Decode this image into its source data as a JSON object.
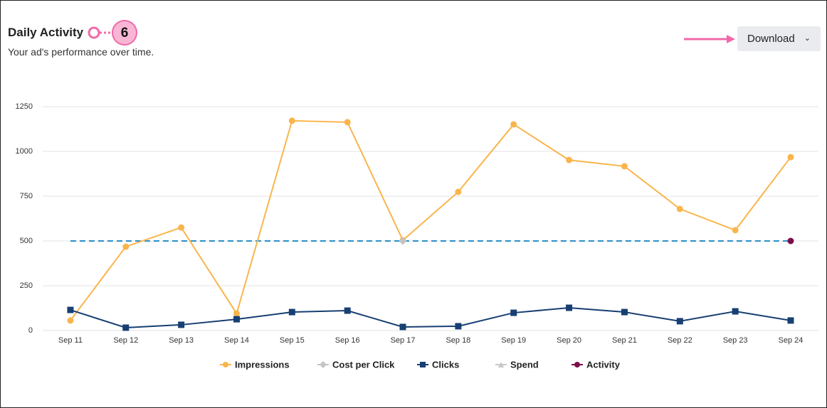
{
  "header": {
    "title": "Daily Activity",
    "subtitle": "Your ad's performance over time."
  },
  "callout": {
    "label": "6"
  },
  "button": {
    "label": "Download"
  },
  "chart_data": {
    "type": "line",
    "categories": [
      "Sep 11",
      "Sep 12",
      "Sep 13",
      "Sep 14",
      "Sep 15",
      "Sep 16",
      "Sep 17",
      "Sep 18",
      "Sep 19",
      "Sep 20",
      "Sep 21",
      "Sep 22",
      "Sep 23",
      "Sep 24"
    ],
    "series": [
      {
        "name": "Impressions",
        "color": "#f9b54c",
        "marker": "circle",
        "values": [
          56,
          468,
          575,
          95,
          1171,
          1163,
          504,
          774,
          1151,
          952,
          917,
          679,
          560,
          968
        ]
      },
      {
        "name": "Cost per Click",
        "color": "#c4c4c4",
        "marker": "diamond",
        "values": [
          null,
          null,
          null,
          null,
          null,
          null,
          500,
          null,
          null,
          null,
          null,
          null,
          null,
          null
        ]
      },
      {
        "name": "Clicks",
        "color": "#173f72",
        "marker": "square",
        "values": [
          115,
          16,
          32,
          63,
          103,
          111,
          20,
          24,
          99,
          127,
          103,
          52,
          107,
          56
        ]
      },
      {
        "name": "Spend",
        "color": "#c8c8c8",
        "marker": "triangle",
        "values": [
          null,
          null,
          null,
          null,
          null,
          null,
          null,
          null,
          null,
          null,
          null,
          null,
          null,
          null
        ]
      },
      {
        "name": "Activity",
        "color": "#7b0f4a",
        "marker": "circle",
        "values": [
          null,
          null,
          null,
          null,
          null,
          null,
          null,
          null,
          null,
          null,
          null,
          null,
          null,
          500
        ]
      }
    ],
    "reference_line": {
      "value": 500,
      "color": "#2a8fc7"
    },
    "ylim": [
      0,
      1250
    ],
    "yticks": [
      0,
      250,
      500,
      750,
      1000,
      1250
    ],
    "grid": true,
    "legend": "bottom"
  }
}
